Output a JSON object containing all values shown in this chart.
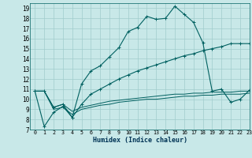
{
  "xlabel": "Humidex (Indice chaleur)",
  "xlim": [
    -0.5,
    23
  ],
  "ylim": [
    7,
    19.5
  ],
  "yticks": [
    7,
    8,
    9,
    10,
    11,
    12,
    13,
    14,
    15,
    16,
    17,
    18,
    19
  ],
  "xticks": [
    0,
    1,
    2,
    3,
    4,
    5,
    6,
    7,
    8,
    9,
    10,
    11,
    12,
    13,
    14,
    15,
    16,
    17,
    18,
    19,
    20,
    21,
    22,
    23
  ],
  "xtick_labels": [
    "0",
    "1",
    "2",
    "3",
    "4",
    "5",
    "6",
    "7",
    "8",
    "9",
    "10",
    "11",
    "12",
    "13",
    "14",
    "15",
    "16",
    "17",
    "18",
    "19",
    "20",
    "21",
    "22",
    "23"
  ],
  "background_color": "#c8e8e8",
  "grid_color": "#a0cccc",
  "line_color": "#006060",
  "lines": [
    {
      "x": [
        0,
        1,
        2,
        3,
        4,
        5,
        6,
        7,
        8,
        9,
        10,
        11,
        12,
        13,
        14,
        15,
        16,
        17,
        18,
        19,
        20,
        21,
        22,
        23
      ],
      "y": [
        10.8,
        7.3,
        8.7,
        9.3,
        8.2,
        11.5,
        12.8,
        13.3,
        14.2,
        15.1,
        16.7,
        17.1,
        18.2,
        17.9,
        18.0,
        19.2,
        18.4,
        17.6,
        15.6,
        10.8,
        11.0,
        9.7,
        10.0,
        10.9
      ],
      "marker": true
    },
    {
      "x": [
        0,
        1,
        2,
        3,
        4,
        5,
        6,
        7,
        8,
        9,
        10,
        11,
        12,
        13,
        14,
        15,
        16,
        17,
        18,
        19,
        20,
        21,
        22,
        23
      ],
      "y": [
        10.8,
        10.8,
        9.2,
        9.5,
        8.2,
        9.5,
        10.5,
        11.0,
        11.5,
        12.0,
        12.4,
        12.8,
        13.1,
        13.4,
        13.7,
        14.0,
        14.3,
        14.5,
        14.8,
        15.0,
        15.2,
        15.5,
        15.5,
        15.5
      ],
      "marker": true
    },
    {
      "x": [
        0,
        1,
        2,
        3,
        4,
        5,
        6,
        7,
        8,
        9,
        10,
        11,
        12,
        13,
        14,
        15,
        16,
        17,
        18,
        19,
        20,
        21,
        22,
        23
      ],
      "y": [
        10.8,
        10.8,
        9.2,
        9.5,
        8.8,
        9.2,
        9.4,
        9.6,
        9.8,
        9.9,
        10.0,
        10.1,
        10.2,
        10.3,
        10.4,
        10.5,
        10.5,
        10.6,
        10.6,
        10.7,
        10.7,
        10.7,
        10.8,
        10.8
      ],
      "marker": false
    },
    {
      "x": [
        0,
        1,
        2,
        3,
        4,
        5,
        6,
        7,
        8,
        9,
        10,
        11,
        12,
        13,
        14,
        15,
        16,
        17,
        18,
        19,
        20,
        21,
        22,
        23
      ],
      "y": [
        10.8,
        10.8,
        9.0,
        9.2,
        8.5,
        9.0,
        9.2,
        9.4,
        9.5,
        9.7,
        9.8,
        9.9,
        10.0,
        10.0,
        10.1,
        10.2,
        10.3,
        10.3,
        10.4,
        10.4,
        10.5,
        10.5,
        10.5,
        10.6
      ],
      "marker": false
    }
  ]
}
